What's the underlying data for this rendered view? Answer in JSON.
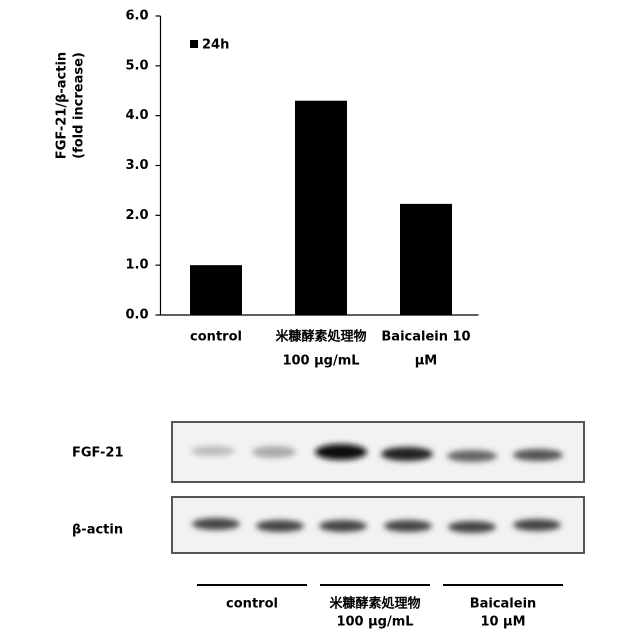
{
  "chart_data": {
    "type": "bar",
    "y_label": [
      "FGF-21/β-actin",
      "(fold increase)"
    ],
    "categories": [
      [
        "control"
      ],
      [
        "米糠酵素処理物",
        "100 μg/mL"
      ],
      [
        "Baicalein 10",
        "μM"
      ]
    ],
    "series": [
      {
        "name": "24h",
        "color": "#000000",
        "values": [
          1.0,
          4.3,
          2.23
        ]
      }
    ],
    "ylim": [
      0,
      6
    ],
    "yticks": [
      {
        "value": 0,
        "label": "0.0"
      },
      {
        "value": 1,
        "label": "1.0"
      },
      {
        "value": 2,
        "label": "2.0"
      },
      {
        "value": 3,
        "label": "3.0"
      },
      {
        "value": 4,
        "label": "4.0"
      },
      {
        "value": 5,
        "label": "5.0"
      },
      {
        "value": 6,
        "label": "6.0"
      }
    ],
    "legend": "top-left"
  },
  "blot": {
    "rows": [
      "FGF-21",
      "β-actin"
    ],
    "groups": [
      [
        "control"
      ],
      [
        "米糠酵素処理物",
        "100 μg/mL"
      ],
      [
        "Baicalein",
        "10 μM"
      ]
    ]
  }
}
